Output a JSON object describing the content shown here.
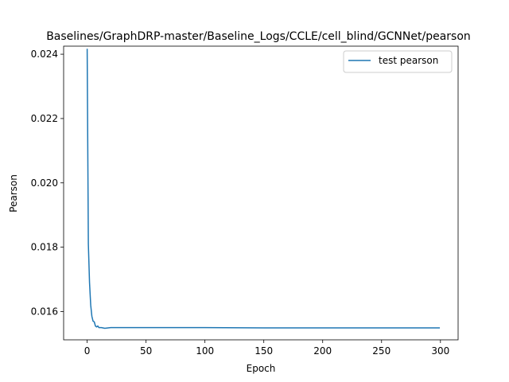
{
  "chart_data": {
    "type": "line",
    "title": "Baselines/GraphDRP-master/Baseline_Logs/CCLE/cell_blind/GCNNet/pearson",
    "xlabel": "Epoch",
    "ylabel": "Pearson",
    "xlim": [
      -20,
      315
    ],
    "ylim": [
      0.01512,
      0.02425
    ],
    "xticks": [
      0,
      50,
      100,
      150,
      200,
      250,
      300
    ],
    "yticks": [
      0.016,
      0.018,
      0.02,
      0.022,
      0.024
    ],
    "ytick_labels": [
      "0.016",
      "0.018",
      "0.020",
      "0.022",
      "0.024"
    ],
    "grid": false,
    "legend_position": "top-right",
    "colors": {
      "series": "#1f77b4"
    },
    "series": [
      {
        "name": "test pearson",
        "x": [
          0,
          1,
          2,
          3,
          4,
          5,
          6,
          7,
          8,
          9,
          10,
          12,
          15,
          20,
          25,
          30,
          50,
          100,
          150,
          200,
          250,
          299
        ],
        "y": [
          0.02415,
          0.0181,
          0.0169,
          0.0162,
          0.01585,
          0.0157,
          0.01568,
          0.01555,
          0.01552,
          0.01555,
          0.0155,
          0.0155,
          0.01548,
          0.0155,
          0.0155,
          0.0155,
          0.0155,
          0.0155,
          0.01549,
          0.01549,
          0.01549,
          0.01549
        ]
      }
    ]
  }
}
